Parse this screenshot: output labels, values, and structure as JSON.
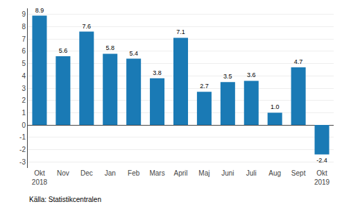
{
  "chart_data": {
    "type": "bar",
    "categories": [
      "Okt\n2018",
      "Nov",
      "Dec",
      "Jan",
      "Feb",
      "Mars",
      "April",
      "Maj",
      "Juni",
      "Juli",
      "Aug",
      "Sept",
      "Okt\n2019"
    ],
    "values": [
      8.9,
      5.6,
      7.6,
      5.8,
      5.4,
      3.8,
      7.1,
      2.7,
      3.5,
      3.6,
      1.0,
      4.7,
      -2.4
    ],
    "value_labels": [
      "8.9",
      "5.6",
      "7.6",
      "5.8",
      "5.4",
      "3.8",
      "7.1",
      "2.7",
      "3.5",
      "3.6",
      "1.0",
      "4.7",
      "-2.4"
    ],
    "color": "#1a7ab5",
    "ylim": [
      -3.5,
      9.5
    ],
    "yticks": [
      -3,
      -2,
      -1,
      0,
      1,
      2,
      3,
      4,
      5,
      6,
      7,
      8,
      9
    ],
    "grid": true,
    "data_labels": true,
    "annotations": [
      "Källa: Statistikcentralen"
    ]
  }
}
